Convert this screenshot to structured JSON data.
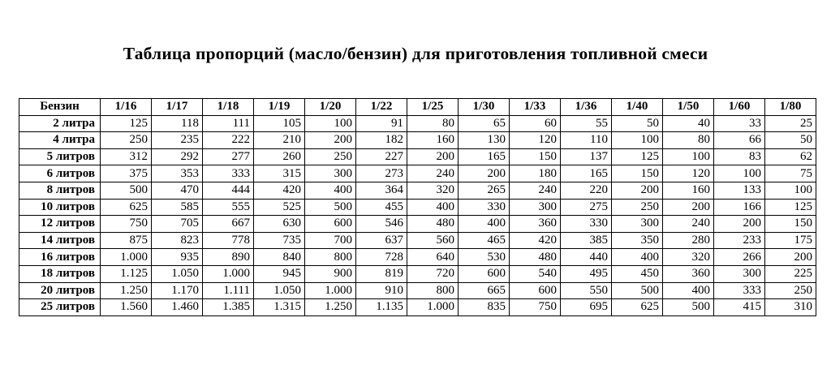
{
  "title": "Таблица пропорций (масло/бензин) для приготовления топливной смеси",
  "table": {
    "corner_header": "Бензин",
    "ratio_headers": [
      "1/16",
      "1/17",
      "1/18",
      "1/19",
      "1/20",
      "1/22",
      "1/25",
      "1/30",
      "1/33",
      "1/36",
      "1/40",
      "1/50",
      "1/60",
      "1/80"
    ],
    "rows": [
      {
        "label": "2 литра",
        "values": [
          "125",
          "118",
          "111",
          "105",
          "100",
          "91",
          "80",
          "65",
          "60",
          "55",
          "50",
          "40",
          "33",
          "25"
        ]
      },
      {
        "label": "4 литра",
        "values": [
          "250",
          "235",
          "222",
          "210",
          "200",
          "182",
          "160",
          "130",
          "120",
          "110",
          "100",
          "80",
          "66",
          "50"
        ]
      },
      {
        "label": "5 литров",
        "values": [
          "312",
          "292",
          "277",
          "260",
          "250",
          "227",
          "200",
          "165",
          "150",
          "137",
          "125",
          "100",
          "83",
          "62"
        ]
      },
      {
        "label": "6 литров",
        "values": [
          "375",
          "353",
          "333",
          "315",
          "300",
          "273",
          "240",
          "200",
          "180",
          "165",
          "150",
          "120",
          "100",
          "75"
        ]
      },
      {
        "label": "8 литров",
        "values": [
          "500",
          "470",
          "444",
          "420",
          "400",
          "364",
          "320",
          "265",
          "240",
          "220",
          "200",
          "160",
          "133",
          "100"
        ]
      },
      {
        "label": "10 литров",
        "values": [
          "625",
          "585",
          "555",
          "525",
          "500",
          "455",
          "400",
          "330",
          "300",
          "275",
          "250",
          "200",
          "166",
          "125"
        ]
      },
      {
        "label": "12 литров",
        "values": [
          "750",
          "705",
          "667",
          "630",
          "600",
          "546",
          "480",
          "400",
          "360",
          "330",
          "300",
          "240",
          "200",
          "150"
        ]
      },
      {
        "label": "14 литров",
        "values": [
          "875",
          "823",
          "778",
          "735",
          "700",
          "637",
          "560",
          "465",
          "420",
          "385",
          "350",
          "280",
          "233",
          "175"
        ]
      },
      {
        "label": "16 литров",
        "values": [
          "1.000",
          "935",
          "890",
          "840",
          "800",
          "728",
          "640",
          "530",
          "480",
          "440",
          "400",
          "320",
          "266",
          "200"
        ]
      },
      {
        "label": "18 литров",
        "values": [
          "1.125",
          "1.050",
          "1.000",
          "945",
          "900",
          "819",
          "720",
          "600",
          "540",
          "495",
          "450",
          "360",
          "300",
          "225"
        ]
      },
      {
        "label": "20 литров",
        "values": [
          "1.250",
          "1.170",
          "1.111",
          "1.050",
          "1.000",
          "910",
          "800",
          "665",
          "600",
          "550",
          "500",
          "400",
          "333",
          "250"
        ]
      },
      {
        "label": "25 литров",
        "values": [
          "1.560",
          "1.460",
          "1.385",
          "1.315",
          "1.250",
          "1.135",
          "1.000",
          "835",
          "750",
          "695",
          "625",
          "500",
          "415",
          "310"
        ]
      }
    ]
  }
}
